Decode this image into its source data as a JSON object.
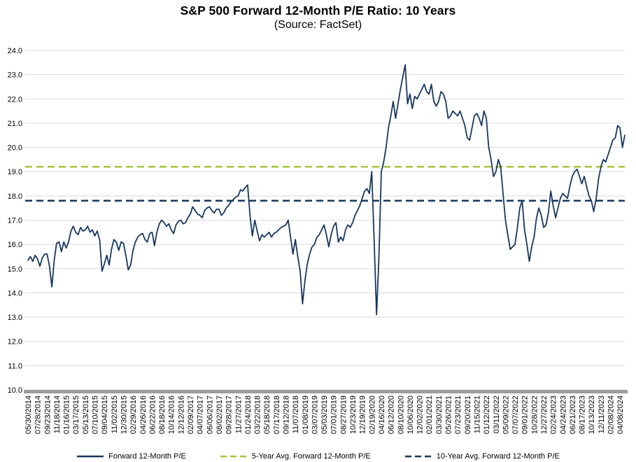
{
  "title": "S&P 500 Forward 12-Month P/E Ratio: 10 Years",
  "subtitle": "(Source: FactSet)",
  "colors": {
    "series": "#17375E",
    "avg5": "#A3C53B",
    "avg10": "#17375E",
    "gridline": "#D9D9D9",
    "axis_bar": "#9C9C9C",
    "text": "#000000"
  },
  "legend": [
    {
      "label": "Forward 12-Month P/E",
      "style": "solid",
      "color_key": "series"
    },
    {
      "label": "5-Year Avg. Forward 12-Month P/E",
      "style": "dashed",
      "color_key": "avg5"
    },
    {
      "label": "10-Year Avg. Forward 12-Month P/E",
      "style": "dashed",
      "color_key": "avg10"
    }
  ],
  "chart_data": {
    "type": "line",
    "title": "S&P 500 Forward 12-Month P/E Ratio: 10 Years",
    "source": "FactSet",
    "xlabel": "",
    "ylabel": "",
    "ylim": [
      10.0,
      24.0
    ],
    "ytick_step": 1.0,
    "grid": "horizontal",
    "legend_position": "bottom",
    "points_per_tick_interval": 4,
    "x_tick_labels": [
      "05/30/2014",
      "07/28/2014",
      "09/23/2014",
      "11/18/2014",
      "01/16/2015",
      "03/17/2015",
      "05/13/2015",
      "07/10/2015",
      "09/04/2015",
      "11/02/2015",
      "12/30/2015",
      "02/29/2016",
      "04/26/2016",
      "06/22/2016",
      "08/18/2016",
      "10/14/2016",
      "12/12/2016",
      "02/09/2017",
      "04/07/2017",
      "06/06/2017",
      "08/02/2017",
      "09/28/2017",
      "11/27/2017",
      "01/24/2018",
      "03/22/2018",
      "05/18/2018",
      "07/17/2018",
      "09/12/2018",
      "11/07/2018",
      "01/08/2019",
      "03/07/2019",
      "05/03/2019",
      "07/01/2019",
      "08/27/2019",
      "10/23/2019",
      "12/19/2019",
      "02/19/2020",
      "04/16/2020",
      "06/12/2020",
      "08/10/2020",
      "10/06/2020",
      "12/02/2020",
      "02/01/2021",
      "03/30/2021",
      "05/26/2021",
      "07/23/2021",
      "09/20/2021",
      "11/15/2021",
      "01/12/2022",
      "03/11/2022",
      "05/09/2022",
      "07/07/2022",
      "09/01/2022",
      "10/28/2022",
      "12/27/2022",
      "02/24/2023",
      "04/24/2023",
      "06/21/2023",
      "08/17/2023",
      "10/13/2023",
      "12/11/2023",
      "02/08/2024",
      "04/08/2024"
    ],
    "series": [
      {
        "name": "Forward 12-Month P/E",
        "style": "solid",
        "color_key": "series",
        "values": [
          15.35,
          15.5,
          15.3,
          15.55,
          15.4,
          15.1,
          15.45,
          15.6,
          15.6,
          15.1,
          14.25,
          15.35,
          16.05,
          16.1,
          15.7,
          16.1,
          15.85,
          16.1,
          16.55,
          16.75,
          16.5,
          16.4,
          16.7,
          16.55,
          16.6,
          16.75,
          16.5,
          16.6,
          16.35,
          16.55,
          16.2,
          14.9,
          15.2,
          15.55,
          15.15,
          15.8,
          16.2,
          16.1,
          15.75,
          16.1,
          16.05,
          15.55,
          14.95,
          15.15,
          15.75,
          16.1,
          16.3,
          16.4,
          16.45,
          16.2,
          16.1,
          16.45,
          16.5,
          15.95,
          16.5,
          16.85,
          17.0,
          16.9,
          16.75,
          16.85,
          16.6,
          16.45,
          16.8,
          16.95,
          17.0,
          16.85,
          16.9,
          17.1,
          17.25,
          17.55,
          17.4,
          17.25,
          17.2,
          17.1,
          17.4,
          17.5,
          17.55,
          17.4,
          17.3,
          17.45,
          17.45,
          17.2,
          17.3,
          17.5,
          17.6,
          17.75,
          17.85,
          17.95,
          18.0,
          18.25,
          18.2,
          18.35,
          18.45,
          17.2,
          16.35,
          17.0,
          16.55,
          16.15,
          16.4,
          16.3,
          16.4,
          16.5,
          16.3,
          16.45,
          16.5,
          16.6,
          16.7,
          16.75,
          16.8,
          17.0,
          16.3,
          15.6,
          16.2,
          15.5,
          14.9,
          13.55,
          14.5,
          15.2,
          15.6,
          15.9,
          16.0,
          16.3,
          16.4,
          16.6,
          16.8,
          16.4,
          15.9,
          16.4,
          16.75,
          16.9,
          16.1,
          16.3,
          16.15,
          16.6,
          16.8,
          16.7,
          16.9,
          17.2,
          17.4,
          17.6,
          17.9,
          18.2,
          18.3,
          18.1,
          19.0,
          16.2,
          13.1,
          15.5,
          19.0,
          19.4,
          20.0,
          20.8,
          21.3,
          21.9,
          21.2,
          21.8,
          22.4,
          22.9,
          23.4,
          21.8,
          22.2,
          21.6,
          22.1,
          22.0,
          22.2,
          22.4,
          22.6,
          22.3,
          22.2,
          22.6,
          21.9,
          21.7,
          21.9,
          22.3,
          22.2,
          21.9,
          21.2,
          21.3,
          21.5,
          21.4,
          21.3,
          21.5,
          21.2,
          20.9,
          20.4,
          20.3,
          20.8,
          21.3,
          21.4,
          21.2,
          20.9,
          21.5,
          21.2,
          20.0,
          19.5,
          18.8,
          19.0,
          19.5,
          19.2,
          18.1,
          17.0,
          16.4,
          15.8,
          15.9,
          16.0,
          16.7,
          17.5,
          17.8,
          16.6,
          16.0,
          15.3,
          15.9,
          16.3,
          17.1,
          17.5,
          17.2,
          16.7,
          16.8,
          17.3,
          18.2,
          17.6,
          17.1,
          17.5,
          17.9,
          18.1,
          18.0,
          17.9,
          18.4,
          18.8,
          19.0,
          19.1,
          18.8,
          18.5,
          18.8,
          18.4,
          18.0,
          17.8,
          17.35,
          17.9,
          18.7,
          19.2,
          19.5,
          19.4,
          19.7,
          20.0,
          20.3,
          20.4,
          20.9,
          20.8,
          20.0,
          20.5
        ]
      }
    ],
    "reference_lines": [
      {
        "name": "5-Year Avg. Forward 12-Month P/E",
        "value": 19.2,
        "style": "dashed",
        "color_key": "avg5"
      },
      {
        "name": "10-Year Avg. Forward 12-Month P/E",
        "value": 17.8,
        "style": "dashed",
        "color_key": "avg10"
      }
    ]
  }
}
